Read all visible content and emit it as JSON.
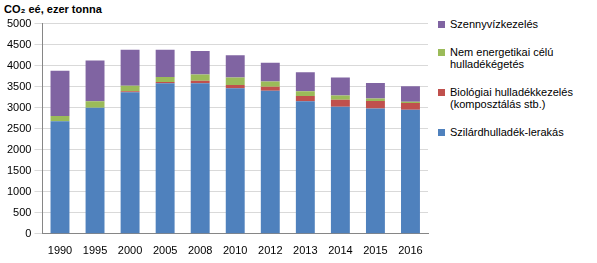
{
  "chart_data": {
    "type": "bar",
    "stacked": true,
    "grid": true,
    "legend": "right",
    "y_label": "CO₂ eé, ezer tonna",
    "categories": [
      "1990",
      "1995",
      "2000",
      "2005",
      "2008",
      "2010",
      "2012",
      "2013",
      "2014",
      "2015",
      "2016"
    ],
    "series": [
      {
        "name": "Szilárdhulladék-lerakás",
        "color": "#4f81bd",
        "values": [
          2680,
          3000,
          3370,
          3580,
          3580,
          3460,
          3400,
          3150,
          3020,
          2980,
          2950
        ]
      },
      {
        "name": "Biológiai hulladékkezelés (komposztálás stb.)",
        "color": "#c0504d",
        "values": [
          0,
          0,
          20,
          30,
          60,
          80,
          100,
          130,
          170,
          180,
          160
        ]
      },
      {
        "name": "Nem energetikai célú hulladékégetés",
        "color": "#9bbb59",
        "values": [
          120,
          150,
          130,
          120,
          150,
          180,
          120,
          110,
          100,
          60,
          30
        ]
      },
      {
        "name": "Szennyvízkezelés",
        "color": "#8064a2",
        "values": [
          1080,
          970,
          860,
          650,
          560,
          530,
          450,
          450,
          430,
          370,
          370
        ]
      }
    ],
    "ylim": [
      0,
      5000
    ],
    "yticks": [
      0,
      500,
      1000,
      1500,
      2000,
      2500,
      3000,
      3500,
      4000,
      4500,
      5000
    ]
  }
}
